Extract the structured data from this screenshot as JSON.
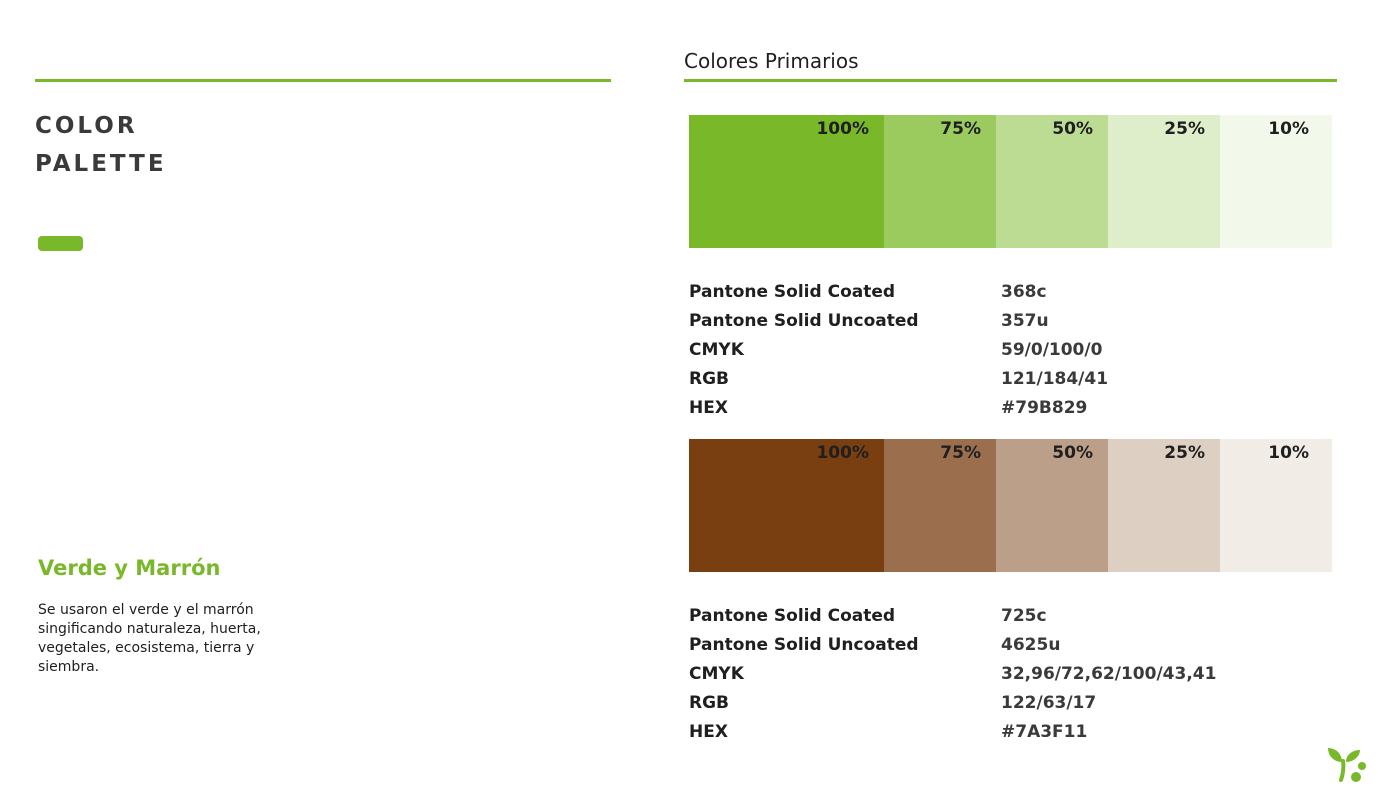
{
  "header": {
    "section_title": "Colores Primarios"
  },
  "left": {
    "title_line1": "COLOR",
    "title_line2": "PALETTE",
    "subheading": "Verde y Marrón",
    "description": "Se usaron el verde y el marrón singificando naturaleza, huerta, vegetales, ecosistema, tierra y siembra."
  },
  "colors": {
    "accent": "#79B829",
    "green": {
      "swatches": [
        {
          "label": "100%",
          "color": "#79B829"
        },
        {
          "label": "75%",
          "color": "#9BCA5F"
        },
        {
          "label": "50%",
          "color": "#BCDC94"
        },
        {
          "label": "25%",
          "color": "#DEEDCA"
        },
        {
          "label": "10%",
          "color": "#F2F8EA"
        }
      ],
      "specs": [
        {
          "label": "Pantone Solid Coated",
          "value": "368c"
        },
        {
          "label": "Pantone Solid Uncoated",
          "value": "357u"
        },
        {
          "label": "CMYK",
          "value": "59/0/100/0"
        },
        {
          "label": "RGB",
          "value": "121/184/41"
        },
        {
          "label": "HEX",
          "value": "#79B829"
        }
      ]
    },
    "brown": {
      "swatches": [
        {
          "label": "100%",
          "color": "#7A3F11"
        },
        {
          "label": "75%",
          "color": "#9B6F4D"
        },
        {
          "label": "50%",
          "color": "#BC9F88"
        },
        {
          "label": "25%",
          "color": "#DECFC3"
        },
        {
          "label": "10%",
          "color": "#F2ECE7"
        }
      ],
      "specs": [
        {
          "label": "Pantone Solid Coated",
          "value": "725c"
        },
        {
          "label": "Pantone Solid Uncoated",
          "value": "4625u"
        },
        {
          "label": "CMYK",
          "value": "32,96/72,62/100/43,41"
        },
        {
          "label": "RGB",
          "value": "122/63/17"
        },
        {
          "label": "HEX",
          "value": "#7A3F11"
        }
      ]
    }
  },
  "logo": {
    "icon": "sprout-logo-icon"
  }
}
